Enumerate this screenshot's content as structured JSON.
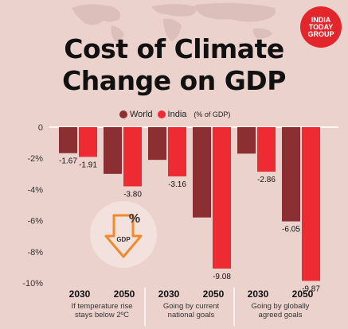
{
  "brand": {
    "line1": "INDIA",
    "line2": "TODAY",
    "line3": "GROUP"
  },
  "title": {
    "line1": "Cost of Climate",
    "line2": "Change on GDP"
  },
  "legend": {
    "world": "World",
    "india": "India",
    "unit_note": "(% of GDP)"
  },
  "badge": {
    "symbol": "%",
    "text": "GDP"
  },
  "colors": {
    "world": "#8b2f33",
    "india": "#ee2b33",
    "background": "#ecd2cd"
  },
  "chart_data": {
    "type": "bar",
    "title": "Cost of Climate Change on GDP",
    "ylim": [
      -10,
      0
    ],
    "yticks": [
      0,
      -2,
      -4,
      -6,
      -8,
      -10
    ],
    "ytick_labels": [
      "0",
      "-2%",
      "-4%",
      "-6%",
      "-8%",
      "-10%"
    ],
    "grid": false,
    "legend_placement": "top-center",
    "groups": [
      {
        "caption": [
          "If temperature rise",
          "stays below 2ºC"
        ],
        "years": [
          {
            "year": "2030",
            "world": -1.67,
            "india": -1.91,
            "world_label": "-1.67",
            "india_label": "-1.91"
          },
          {
            "year": "2050",
            "world": -3.0,
            "india": -3.8,
            "world_label": "",
            "india_label": "-3.80"
          }
        ]
      },
      {
        "caption": [
          "Going by current",
          "national goals"
        ],
        "years": [
          {
            "year": "2030",
            "world": -2.1,
            "india": -3.16,
            "world_label": "",
            "india_label": "-3.16"
          },
          {
            "year": "2050",
            "world": -5.8,
            "india": -9.08,
            "world_label": "",
            "india_label": "-9.08"
          }
        ]
      },
      {
        "caption": [
          "Going by globally",
          "agreed goals"
        ],
        "years": [
          {
            "year": "2030",
            "world": -1.7,
            "india": -2.86,
            "world_label": "",
            "india_label": "-2.86"
          },
          {
            "year": "2050",
            "world": -6.05,
            "india": -9.87,
            "world_label": "-6.05",
            "india_label": "-9.87"
          }
        ]
      }
    ]
  }
}
